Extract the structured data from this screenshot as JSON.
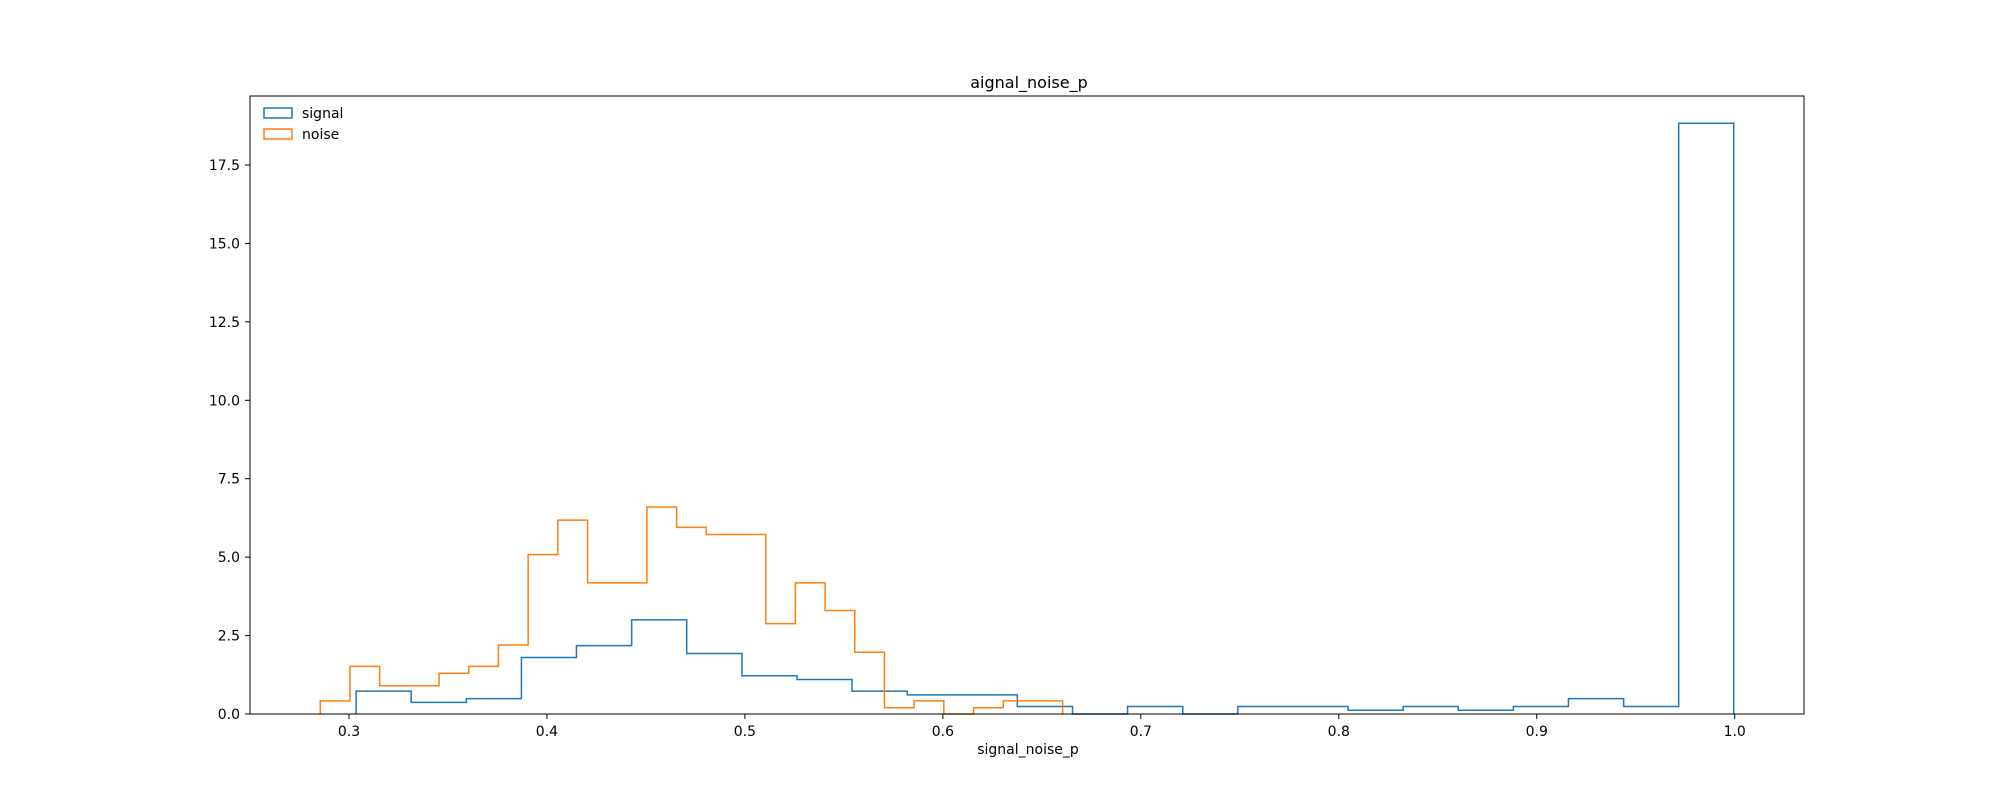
{
  "chart_data": {
    "type": "histogram-step",
    "title": "aignal_noise_p",
    "xlabel": "signal_noise_p",
    "ylabel": "",
    "xlim": [
      0.25,
      1.035
    ],
    "ylim": [
      0,
      19.7
    ],
    "xticks": [
      "0.3",
      "0.4",
      "0.5",
      "0.6",
      "0.7",
      "0.8",
      "0.9",
      "1.0"
    ],
    "yticks": [
      "0.0",
      "2.5",
      "5.0",
      "7.5",
      "10.0",
      "12.5",
      "15.0",
      "17.5"
    ],
    "grid": false,
    "legend_position": "top-left",
    "series": [
      {
        "name": "signal",
        "color": "#1f77b4",
        "edges": [
          0.3036,
          0.3314,
          0.3593,
          0.3871,
          0.4149,
          0.4428,
          0.4706,
          0.4985,
          0.5263,
          0.5541,
          0.582,
          0.6098,
          0.6376,
          0.6655,
          0.6933,
          0.7212,
          0.749,
          0.7768,
          0.8047,
          0.8325,
          0.8603,
          0.8882,
          0.916,
          0.9439,
          0.9717,
          0.9995
        ],
        "values": [
          0.73,
          0.37,
          0.49,
          1.8,
          2.18,
          3.0,
          1.93,
          1.22,
          1.1,
          0.73,
          0.61,
          0.61,
          0.24,
          0,
          0.24,
          0,
          0.24,
          0.24,
          0.12,
          0.24,
          0.12,
          0.24,
          0.49,
          0.24,
          18.83
        ]
      },
      {
        "name": "noise",
        "color": "#ff7f0e",
        "edges": [
          0.2855,
          0.3005,
          0.3155,
          0.3305,
          0.3455,
          0.3605,
          0.3755,
          0.3905,
          0.4055,
          0.4205,
          0.4355,
          0.4505,
          0.4655,
          0.4805,
          0.4955,
          0.5105,
          0.5255,
          0.5405,
          0.5555,
          0.5705,
          0.5855,
          0.6005,
          0.6155,
          0.6305,
          0.6455,
          0.6605
        ],
        "values": [
          0.42,
          1.52,
          0.9,
          0.9,
          1.3,
          1.52,
          2.2,
          5.08,
          6.18,
          4.18,
          4.18,
          6.6,
          5.95,
          5.72,
          5.72,
          2.88,
          4.18,
          3.3,
          1.97,
          0.2,
          0.42,
          0,
          0.2,
          0.42,
          0.42
        ]
      }
    ]
  }
}
